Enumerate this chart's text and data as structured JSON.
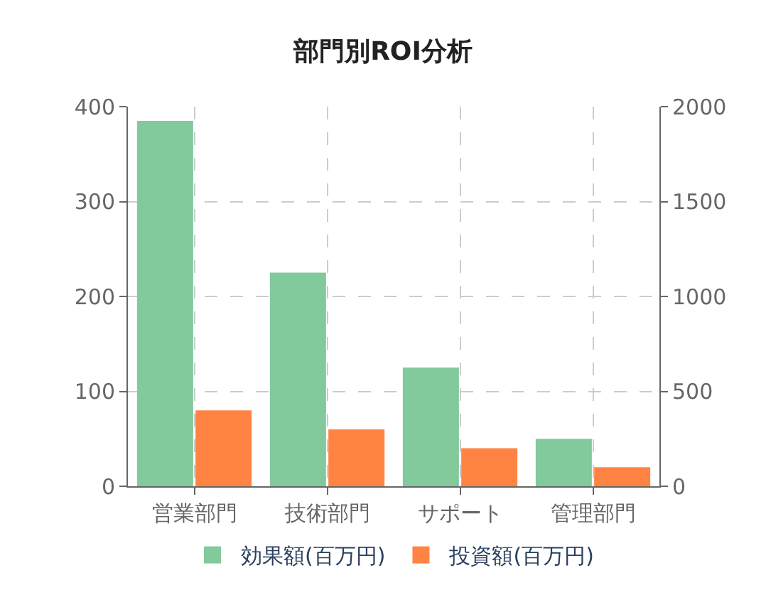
{
  "chart_data": {
    "type": "bar",
    "title": "部門別ROI分析",
    "categories": [
      "営業部門",
      "技術部門",
      "サポート",
      "管理部門"
    ],
    "series": [
      {
        "name": "効果額(百万円)",
        "color": "#82c99b",
        "values": [
          385,
          225,
          125,
          50
        ]
      },
      {
        "name": "投資額(百万円)",
        "color": "#ff8444",
        "values": [
          400,
          300,
          200,
          100
        ],
        "axis": "y2"
      }
    ],
    "ylim": [
      0,
      400
    ],
    "yticks": [
      0,
      100,
      200,
      300,
      400
    ],
    "y2lim": [
      0,
      2000
    ],
    "y2ticks": [
      0,
      500,
      1000,
      1500,
      2000
    ],
    "grid": true,
    "legend": "bottom"
  }
}
